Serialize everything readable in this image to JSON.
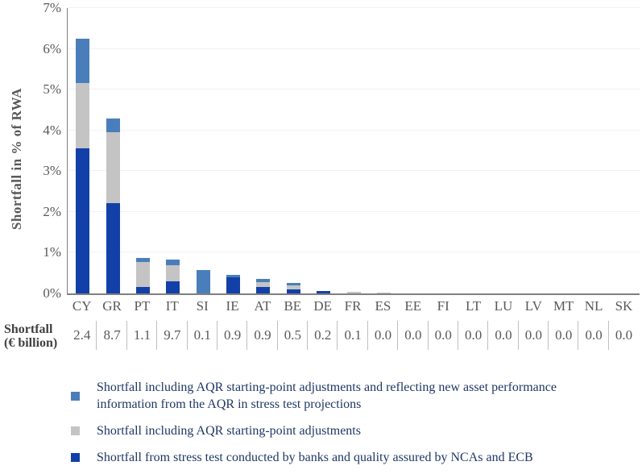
{
  "chart_data": {
    "type": "bar",
    "stacked": true,
    "title": "",
    "ylabel": "Shortfall in % of RWA",
    "ylim": [
      0,
      7
    ],
    "grid": true,
    "legend_position": "bottom",
    "yticks": [
      "0%",
      "1%",
      "2%",
      "3%",
      "4%",
      "5%",
      "6%",
      "7%"
    ],
    "categories": [
      "CY",
      "GR",
      "PT",
      "IT",
      "SI",
      "IE",
      "AT",
      "BE",
      "DE",
      "FR",
      "ES",
      "EE",
      "FI",
      "LT",
      "LU",
      "LV",
      "MT",
      "NL",
      "SK"
    ],
    "series": [
      {
        "key": "stress_test",
        "name": "Shortfall from stress test conducted by banks and quality assured by NCAs and ECB",
        "color": "#1340A8",
        "values": [
          3.55,
          2.22,
          0.15,
          0.29,
          0,
          0.4,
          0.15,
          0.1,
          0.05,
          0,
          0,
          0,
          0,
          0,
          0,
          0,
          0,
          0,
          0
        ]
      },
      {
        "key": "aqr_adjustments",
        "name": "Shortfall including AQR starting-point adjustments",
        "color": "#C4C4C4",
        "values": [
          1.61,
          1.74,
          0.62,
          0.41,
          0,
          0,
          0.12,
          0.1,
          0,
          0.03,
          0.02,
          0,
          0,
          0,
          0,
          0,
          0,
          0,
          0
        ]
      },
      {
        "key": "aqr_new_info",
        "name": "Shortfall including AQR starting-point adjustments and reflecting new asset performance information from the AQR in stress test projections",
        "color": "#4A7EBB",
        "values": [
          1.09,
          0.34,
          0.11,
          0.14,
          0.58,
          0.05,
          0.08,
          0.05,
          0,
          0,
          0,
          0,
          0,
          0,
          0,
          0,
          0,
          0,
          0
        ]
      }
    ],
    "legend_order": [
      2,
      1,
      0
    ],
    "table_row": {
      "label": "Shortfall\n(€ billion)",
      "values": [
        "2.4",
        "8.7",
        "1.1",
        "9.7",
        "0.1",
        "0.9",
        "0.9",
        "0.5",
        "0.2",
        "0.1",
        "0.0",
        "0.0",
        "0.0",
        "0.0",
        "0.0",
        "0.0",
        "0.0",
        "0.0",
        "0.0"
      ]
    }
  },
  "colors": {
    "bg": "#FFFFFF",
    "axis_text": "#595959",
    "axis_line": "#808080",
    "gridline": "#F2F2F2",
    "table_separator": "#BFBFBF",
    "table_label_text": "#404040",
    "legend_text": "#1F3864"
  }
}
